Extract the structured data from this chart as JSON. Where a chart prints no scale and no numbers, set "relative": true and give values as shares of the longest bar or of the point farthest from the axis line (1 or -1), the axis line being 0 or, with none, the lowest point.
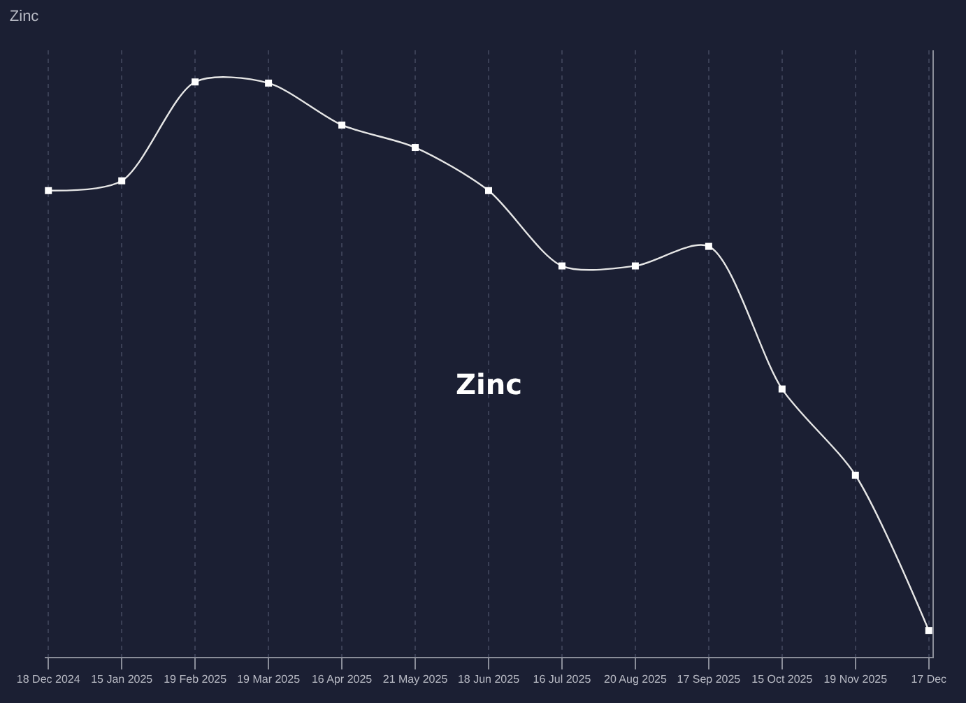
{
  "chart_data": {
    "type": "line",
    "title": "Zinc",
    "annotations": [
      "Zinc"
    ],
    "relative": true,
    "grid": "x",
    "marker": "square",
    "line_style": "solid",
    "categories": [
      "18 Dec 2024",
      "15 Jan 2025",
      "19 Feb 2025",
      "19 Mar 2025",
      "16 Apr 2025",
      "21 May 2025",
      "18 Jun 2025",
      "16 Jul 2025",
      "20 Aug 2025",
      "17 Sep 2025",
      "15 Oct 2025",
      "19 Nov 2025",
      "17 Dec"
    ],
    "series": [
      {
        "color": "#e6e6e6",
        "values": [
          0.811,
          0.828,
          1,
          0.998,
          0.925,
          0.886,
          0.811,
          0.68,
          0.68,
          0.714,
          0.466,
          0.316,
          0.046
        ]
      }
    ]
  }
}
